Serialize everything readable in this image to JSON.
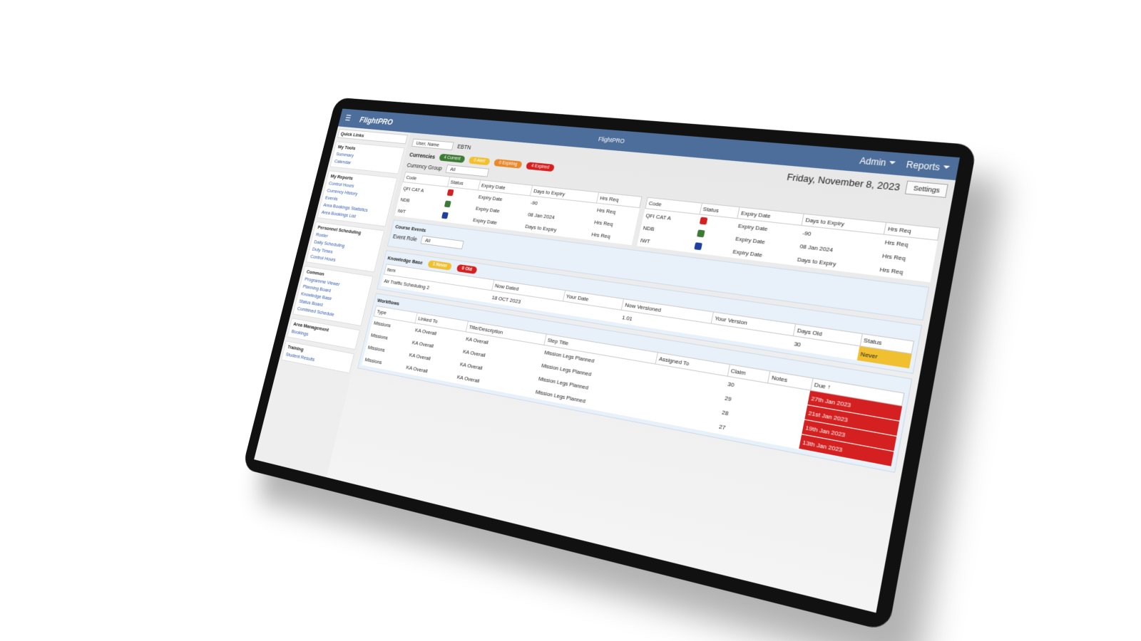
{
  "header": {
    "logo": "FlightPRO",
    "title": "FlightPRO",
    "menu": [
      "Admin",
      "Reports"
    ]
  },
  "sidebar": {
    "quick_links": "Quick Links",
    "sections": [
      {
        "title": "My Tools",
        "items": [
          "Summary",
          "Calendar"
        ]
      },
      {
        "title": "My Reports",
        "items": [
          "Control Hours",
          "Currency History",
          "Events",
          "Area Bookings Statistics",
          "Area Bookings List"
        ]
      },
      {
        "title": "Personnel Scheduling",
        "items": [
          "Roster",
          "Daily Scheduling",
          "Duty Times",
          "Control Hours"
        ]
      },
      {
        "title": "Common",
        "items": [
          "Programme Viewer",
          "Planning Board",
          "Knowledge Base",
          "Status Board",
          "Combined Schedule"
        ]
      },
      {
        "title": "Area Management",
        "items": [
          "Bookings"
        ]
      },
      {
        "title": "Training",
        "items": [
          "Student Results"
        ]
      }
    ]
  },
  "toolbar": {
    "user": "User, Name",
    "base": "EBTN",
    "date": "Friday, November 8, 2023",
    "settings": "Settings"
  },
  "currencies": {
    "title": "Currencies",
    "badges": [
      {
        "label": "4 Current",
        "color": "#3d7a35"
      },
      {
        "label": "0 Alert",
        "color": "#f0c030"
      },
      {
        "label": "0 Expiring",
        "color": "#e8892b"
      },
      {
        "label": "4 Expired",
        "color": "#d42020"
      }
    ],
    "group_label": "Currency Group",
    "group_value": "All",
    "columns": [
      "Code",
      "Status",
      "Expiry Date",
      "Days to Expiry",
      "Hrs Req"
    ],
    "rows": [
      {
        "code": "QFI CAT A",
        "status_color": "#d42020",
        "expiry": "Expiry Date",
        "days": "-90",
        "hrs": "Hrs Req"
      },
      {
        "code": "NDB",
        "status_color": "#3d7a35",
        "expiry": "Expiry Date",
        "days": "08 Jan 2024",
        "hrs": "Hrs Req"
      },
      {
        "code": "IWT",
        "status_color": "#1f3fa0",
        "expiry": "Expiry Date",
        "days": "Days to Expiry",
        "hrs": "Hrs Req"
      }
    ]
  },
  "course_events": {
    "title": "Course Events",
    "role_label": "Event Role",
    "role_value": "All"
  },
  "knowledge_base": {
    "title": "Knowledge Base",
    "badges": [
      {
        "label": "1 Never",
        "color": "#f0c030"
      },
      {
        "label": "0 Old",
        "color": "#d42020"
      }
    ],
    "columns": [
      "Item",
      "Now Dated",
      "Your Date",
      "Now Versioned",
      "Your Version",
      "Days Old",
      "Status"
    ],
    "rows": [
      [
        "Air Traffic Scheduling 2",
        "18 OCT 2023",
        null,
        "1.01",
        null,
        "30",
        "Never"
      ]
    ]
  },
  "workflows": {
    "title": "Workflows",
    "columns": [
      "Type",
      "Linked To",
      "Title/Description",
      "Step Title",
      "Assigned To",
      "Claim",
      "Notes",
      "Due ↑"
    ],
    "rows": [
      [
        "Missions",
        "KA Overall",
        "KA Overall",
        "Mission Legs Planned",
        null,
        "30",
        null,
        "27th Jan 2023"
      ],
      [
        "Missions",
        "KA Overall",
        "KA Overall",
        "Mission Legs Planned",
        null,
        "29",
        null,
        "21st Jan 2023"
      ],
      [
        "Missions",
        "KA Overall",
        "KA Overall",
        "Mission Legs Planned",
        null,
        "28",
        null,
        "19th Jan 2023"
      ],
      [
        "Missions",
        "KA Overall",
        "KA Overall",
        "Mission Legs Planned",
        null,
        "27",
        null,
        "13th Jan 2023"
      ]
    ]
  }
}
